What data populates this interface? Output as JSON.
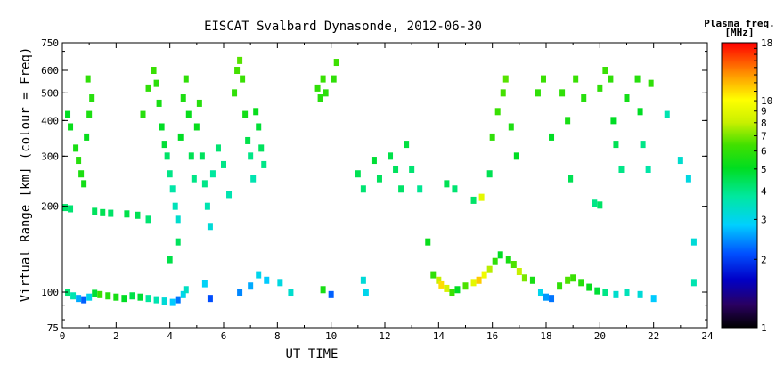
{
  "chart_data": {
    "type": "scatter",
    "title": "EISCAT Svalbard Dynasonde, 2012-06-30",
    "xlabel": "UT TIME",
    "ylabel": "Virtual Range [km] (colour = Freq)",
    "xlim": [
      0,
      24
    ],
    "ylim": [
      75,
      750
    ],
    "y_scale": "log",
    "x_ticks": [
      "0",
      "2",
      "4",
      "6",
      "8",
      "10",
      "12",
      "14",
      "16",
      "18",
      "20",
      "22",
      "24"
    ],
    "y_ticks": [
      "75",
      "100",
      "200",
      "300",
      "400",
      "500",
      "600",
      "750"
    ],
    "colorbar": {
      "title_line1": "Plasma freq.",
      "title_line2": "[MHz]",
      "range": [
        1,
        18
      ],
      "scale": "log",
      "tick_labels": [
        "1",
        "2",
        "3",
        "4",
        "5",
        "6",
        "7",
        "8",
        "9",
        "10",
        "18"
      ]
    },
    "series": [
      {
        "points": [
          [
            0.2,
            420,
            5
          ],
          [
            0.3,
            380,
            5.2
          ],
          [
            0.5,
            320,
            5.5
          ],
          [
            0.6,
            290,
            5.8
          ],
          [
            0.7,
            260,
            5.6
          ],
          [
            0.8,
            240,
            5.4
          ],
          [
            0.9,
            350,
            5.2
          ],
          [
            1.0,
            420,
            5.6
          ],
          [
            1.1,
            480,
            5.8
          ],
          [
            0.95,
            560,
            6.0
          ],
          [
            0.1,
            198,
            4.3
          ],
          [
            0.3,
            196,
            4.2
          ],
          [
            1.2,
            192,
            4.4
          ],
          [
            1.5,
            190,
            4.5
          ],
          [
            1.8,
            189,
            4.3
          ],
          [
            2.4,
            188,
            4.6
          ],
          [
            2.8,
            186,
            4.5
          ],
          [
            3.2,
            180,
            4.2
          ],
          [
            0.2,
            100,
            4.2
          ],
          [
            0.4,
            97,
            3.6
          ],
          [
            0.6,
            95,
            2.6
          ],
          [
            0.8,
            94,
            2.2
          ],
          [
            1.0,
            96,
            3.0
          ],
          [
            1.2,
            99,
            4.8
          ],
          [
            1.4,
            98,
            6.2
          ],
          [
            1.7,
            97,
            5.8
          ],
          [
            2.0,
            96,
            5.5
          ],
          [
            2.3,
            95,
            5.0
          ],
          [
            2.6,
            97,
            4.6
          ],
          [
            2.9,
            96,
            4.8
          ],
          [
            3.2,
            95,
            3.8
          ],
          [
            3.5,
            94,
            3.6
          ],
          [
            3.8,
            93,
            3.2
          ],
          [
            4.1,
            92,
            2.8
          ],
          [
            4.3,
            94,
            2.3
          ],
          [
            4.5,
            98,
            3.0
          ],
          [
            4.6,
            102,
            3.4
          ],
          [
            3.0,
            420,
            5.8
          ],
          [
            3.2,
            520,
            6.0
          ],
          [
            3.4,
            600,
            6.2
          ],
          [
            3.5,
            540,
            5.9
          ],
          [
            3.6,
            460,
            5.5
          ],
          [
            3.7,
            380,
            5.0
          ],
          [
            3.8,
            330,
            4.8
          ],
          [
            3.9,
            300,
            4.3
          ],
          [
            4.0,
            260,
            4.0
          ],
          [
            4.1,
            230,
            3.7
          ],
          [
            4.2,
            200,
            3.5
          ],
          [
            4.3,
            180,
            3.3
          ],
          [
            4.4,
            350,
            5.0
          ],
          [
            4.5,
            480,
            5.6
          ],
          [
            4.6,
            560,
            6.0
          ],
          [
            4.7,
            420,
            5.2
          ],
          [
            4.8,
            300,
            4.5
          ],
          [
            4.9,
            250,
            4.0
          ],
          [
            5.0,
            380,
            5.2
          ],
          [
            5.1,
            460,
            5.8
          ],
          [
            5.2,
            300,
            4.4
          ],
          [
            5.3,
            240,
            4.0
          ],
          [
            5.4,
            200,
            3.6
          ],
          [
            5.5,
            170,
            3.2
          ],
          [
            5.6,
            260,
            3.8
          ],
          [
            5.8,
            320,
            4.2
          ],
          [
            6.0,
            280,
            4.0
          ],
          [
            6.2,
            220,
            3.6
          ],
          [
            6.4,
            500,
            6.0
          ],
          [
            6.5,
            600,
            6.4
          ],
          [
            6.6,
            650,
            6.6
          ],
          [
            6.7,
            560,
            6.2
          ],
          [
            6.8,
            420,
            5.4
          ],
          [
            6.9,
            340,
            4.6
          ],
          [
            7.0,
            300,
            4.0
          ],
          [
            7.1,
            250,
            3.6
          ],
          [
            7.2,
            430,
            5.2
          ],
          [
            7.3,
            380,
            4.8
          ],
          [
            7.4,
            320,
            4.4
          ],
          [
            7.5,
            280,
            4.0
          ],
          [
            4.0,
            130,
            4.6
          ],
          [
            4.3,
            150,
            4.4
          ],
          [
            5.3,
            107,
            2.9
          ],
          [
            5.5,
            95,
            2.1
          ],
          [
            6.6,
            100,
            2.4
          ],
          [
            7.0,
            105,
            2.6
          ],
          [
            7.3,
            115,
            3.0
          ],
          [
            7.6,
            110,
            2.8
          ],
          [
            8.1,
            108,
            3.1
          ],
          [
            8.5,
            100,
            3.3
          ],
          [
            9.5,
            520,
            6.0
          ],
          [
            9.6,
            480,
            5.8
          ],
          [
            9.7,
            560,
            6.2
          ],
          [
            9.8,
            500,
            5.9
          ],
          [
            10.1,
            560,
            6.0
          ],
          [
            10.2,
            640,
            6.3
          ],
          [
            10.0,
            98,
            2.2
          ],
          [
            9.7,
            102,
            5.5
          ],
          [
            11.2,
            110,
            3.2
          ],
          [
            11.3,
            100,
            3.0
          ],
          [
            11.0,
            260,
            4.5
          ],
          [
            11.2,
            230,
            4.2
          ],
          [
            11.6,
            290,
            4.8
          ],
          [
            11.8,
            250,
            4.4
          ],
          [
            12.2,
            300,
            4.6
          ],
          [
            12.4,
            270,
            4.4
          ],
          [
            12.6,
            230,
            4.3
          ],
          [
            12.8,
            330,
            4.7
          ],
          [
            13.0,
            270,
            4.2
          ],
          [
            13.3,
            230,
            3.9
          ],
          [
            13.6,
            150,
            5.2
          ],
          [
            13.8,
            115,
            6.0
          ],
          [
            14.0,
            110,
            8.0
          ],
          [
            14.1,
            106,
            11.0
          ],
          [
            14.3,
            103,
            8.5
          ],
          [
            14.5,
            100,
            6.2
          ],
          [
            14.7,
            102,
            5.0
          ],
          [
            15.0,
            105,
            6.5
          ],
          [
            15.3,
            108,
            9.0
          ],
          [
            15.5,
            110,
            11.5
          ],
          [
            15.7,
            115,
            9.5
          ],
          [
            15.9,
            120,
            7.8
          ],
          [
            16.1,
            128,
            6.0
          ],
          [
            16.3,
            135,
            5.0
          ],
          [
            16.6,
            130,
            5.5
          ],
          [
            16.8,
            125,
            6.5
          ],
          [
            17.0,
            118,
            8.0
          ],
          [
            17.2,
            112,
            7.0
          ],
          [
            17.5,
            110,
            5.5
          ],
          [
            17.8,
            100,
            3.0
          ],
          [
            18.0,
            96,
            2.5
          ],
          [
            18.2,
            95,
            2.3
          ],
          [
            18.5,
            105,
            6.0
          ],
          [
            18.8,
            110,
            6.5
          ],
          [
            19.0,
            112,
            6.2
          ],
          [
            19.3,
            108,
            5.8
          ],
          [
            19.6,
            104,
            5.2
          ],
          [
            19.9,
            101,
            4.8
          ],
          [
            20.2,
            100,
            4.0
          ],
          [
            20.6,
            98,
            3.3
          ],
          [
            21.0,
            100,
            3.5
          ],
          [
            21.5,
            98,
            3.2
          ],
          [
            22.0,
            95,
            2.8
          ],
          [
            23.5,
            108,
            3.6
          ],
          [
            14.3,
            240,
            4.5
          ],
          [
            14.6,
            230,
            4.2
          ],
          [
            15.3,
            210,
            4.3
          ],
          [
            15.6,
            215,
            9.0
          ],
          [
            15.9,
            260,
            4.5
          ],
          [
            16.0,
            350,
            6.0
          ],
          [
            16.2,
            430,
            6.2
          ],
          [
            16.4,
            500,
            6.4
          ],
          [
            16.5,
            560,
            6.6
          ],
          [
            16.7,
            380,
            5.6
          ],
          [
            16.9,
            300,
            5.0
          ],
          [
            17.7,
            500,
            6.0
          ],
          [
            17.9,
            560,
            6.2
          ],
          [
            18.2,
            350,
            5.0
          ],
          [
            18.6,
            500,
            6.0
          ],
          [
            18.8,
            400,
            5.5
          ],
          [
            18.9,
            250,
            4.5
          ],
          [
            19.1,
            560,
            6.2
          ],
          [
            19.4,
            480,
            5.8
          ],
          [
            20.0,
            520,
            6.0
          ],
          [
            20.2,
            600,
            6.2
          ],
          [
            20.4,
            560,
            6.0
          ],
          [
            20.5,
            400,
            5.0
          ],
          [
            20.6,
            330,
            4.5
          ],
          [
            20.8,
            270,
            4.0
          ],
          [
            21.0,
            480,
            5.4
          ],
          [
            21.4,
            560,
            5.8
          ],
          [
            21.5,
            430,
            5.0
          ],
          [
            21.6,
            330,
            4.0
          ],
          [
            21.8,
            270,
            3.7
          ],
          [
            21.9,
            540,
            6.0
          ],
          [
            22.5,
            420,
            3.6
          ],
          [
            23.0,
            290,
            3.3
          ],
          [
            23.3,
            250,
            3.1
          ],
          [
            23.5,
            150,
            3.2
          ],
          [
            19.8,
            205,
            4.0
          ],
          [
            20.0,
            202,
            4.3
          ]
        ]
      }
    ]
  }
}
